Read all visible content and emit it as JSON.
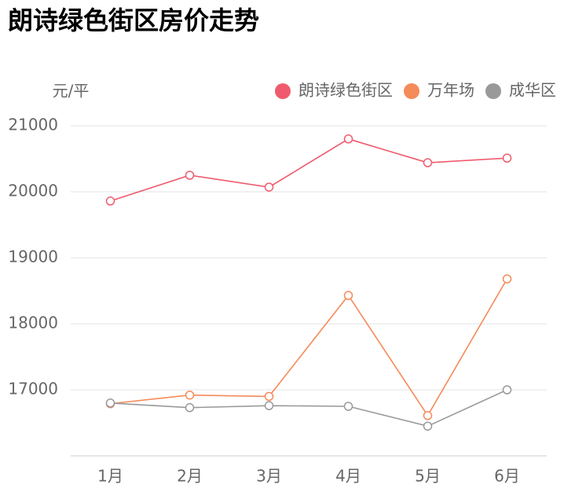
{
  "chart_data": {
    "type": "line",
    "title": "朗诗绿色街区房价走势",
    "y_label": "元/平",
    "categories": [
      "1月",
      "2月",
      "3月",
      "4月",
      "5月",
      "6月"
    ],
    "series": [
      {
        "name": "朗诗绿色街区",
        "color": "#ef5b6d",
        "values": [
          19860,
          20250,
          20070,
          20800,
          20440,
          20510
        ]
      },
      {
        "name": "万年场",
        "color": "#f58a5a",
        "values": [
          16790,
          16920,
          16900,
          18430,
          16610,
          18680
        ]
      },
      {
        "name": "成华区",
        "color": "#999999",
        "values": [
          16800,
          16730,
          16760,
          16750,
          16450,
          17000
        ]
      }
    ],
    "ylim": [
      16000,
      21000
    ],
    "yticks": [
      17000,
      18000,
      19000,
      20000,
      21000
    ],
    "grid": true,
    "legend": "top-right"
  }
}
